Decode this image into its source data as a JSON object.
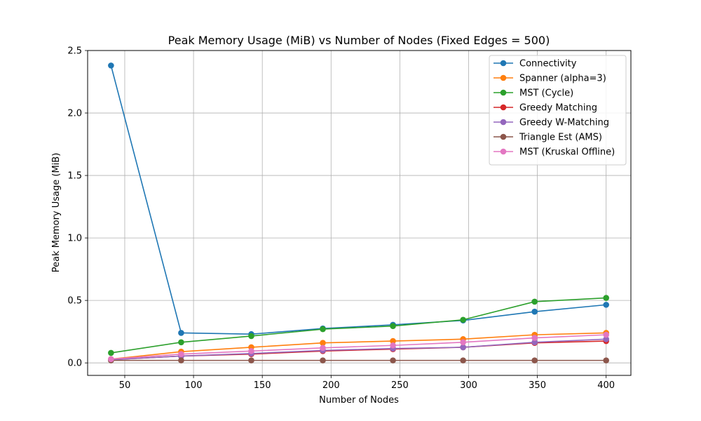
{
  "chart_data": {
    "type": "line",
    "title": "Peak Memory Usage (MiB) vs Number of Nodes (Fixed Edges = 500)",
    "xlabel": "Number of Nodes",
    "ylabel": "Peak Memory Usage (MiB)",
    "xlim": [
      23,
      418
    ],
    "ylim": [
      -0.1,
      2.5
    ],
    "xticks": [
      50,
      100,
      150,
      200,
      250,
      300,
      350,
      400
    ],
    "yticks": [
      0.0,
      0.5,
      1.0,
      1.5,
      2.0,
      2.5
    ],
    "xtick_labels": [
      "50",
      "100",
      "150",
      "200",
      "250",
      "300",
      "350",
      "400"
    ],
    "ytick_labels": [
      "0.0",
      "0.5",
      "1.0",
      "1.5",
      "2.0",
      "2.5"
    ],
    "grid": true,
    "legend_position": "top-right",
    "x": [
      40,
      91,
      142,
      194,
      245,
      296,
      348,
      400
    ],
    "series": [
      {
        "name": "Connectivity",
        "color": "#1f77b4",
        "values": [
          2.38,
          0.24,
          0.23,
          0.275,
          0.305,
          0.34,
          0.41,
          0.465
        ]
      },
      {
        "name": "Spanner (alpha=3)",
        "color": "#ff7f0e",
        "values": [
          0.03,
          0.09,
          0.125,
          0.16,
          0.175,
          0.19,
          0.225,
          0.24
        ]
      },
      {
        "name": "MST (Cycle)",
        "color": "#2ca02c",
        "values": [
          0.08,
          0.165,
          0.215,
          0.27,
          0.295,
          0.345,
          0.49,
          0.52
        ]
      },
      {
        "name": "Greedy Matching",
        "color": "#d62728",
        "values": [
          0.025,
          0.055,
          0.07,
          0.095,
          0.11,
          0.125,
          0.16,
          0.175
        ]
      },
      {
        "name": "Greedy W-Matching",
        "color": "#9467bd",
        "values": [
          0.025,
          0.055,
          0.075,
          0.1,
          0.115,
          0.125,
          0.165,
          0.19
        ]
      },
      {
        "name": "Triangle Est (AMS)",
        "color": "#8c564b",
        "values": [
          0.02,
          0.02,
          0.02,
          0.02,
          0.02,
          0.02,
          0.02,
          0.02
        ]
      },
      {
        "name": "MST (Kruskal Offline)",
        "color": "#e377c2",
        "values": [
          0.03,
          0.07,
          0.095,
          0.12,
          0.14,
          0.165,
          0.2,
          0.225
        ]
      }
    ]
  }
}
